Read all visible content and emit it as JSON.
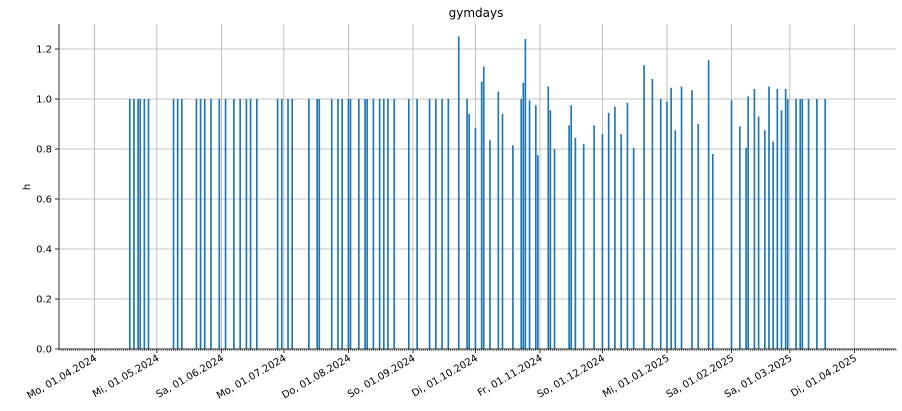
{
  "chart_data": {
    "type": "bar",
    "title": "gymdays",
    "xlabel": "",
    "ylabel": "h",
    "ylim": [
      0,
      1.3
    ],
    "xlim": [
      "2024-03-15",
      "2025-04-21"
    ],
    "grid": true,
    "bar_color": "#1f77b4",
    "y_ticks": [
      0.0,
      0.2,
      0.4,
      0.6,
      0.8,
      1.0,
      1.2
    ],
    "y_tick_labels": [
      "0.0",
      "0.2",
      "0.4",
      "0.6",
      "0.8",
      "1.0",
      "1.2"
    ],
    "x_ticks": [
      "2024-04-01",
      "2024-05-01",
      "2024-06-01",
      "2024-07-01",
      "2024-08-01",
      "2024-09-01",
      "2024-10-01",
      "2024-11-01",
      "2024-12-01",
      "2025-01-01",
      "2025-02-01",
      "2025-03-01",
      "2025-04-01"
    ],
    "x_tick_labels": [
      "Mo, 01.04.2024",
      "Mi, 01.05.2024",
      "Sa, 01.06.2024",
      "Mo, 01.07.2024",
      "Do, 01.08.2024",
      "So, 01.09.2024",
      "Di, 01.10.2024",
      "Fr, 01.11.2024",
      "So, 01.12.2024",
      "Mi, 01.01.2025",
      "Sa, 01.02.2025",
      "Sa, 01.03.2025",
      "Di, 01.04.2025"
    ],
    "x": [
      "2024-04-18",
      "2024-04-20",
      "2024-04-22",
      "2024-04-23",
      "2024-04-25",
      "2024-04-27",
      "2024-05-09",
      "2024-05-11",
      "2024-05-13",
      "2024-05-20",
      "2024-05-22",
      "2024-05-24",
      "2024-05-27",
      "2024-05-31",
      "2024-06-03",
      "2024-06-07",
      "2024-06-10",
      "2024-06-13",
      "2024-06-15",
      "2024-06-18",
      "2024-06-28",
      "2024-06-30",
      "2024-07-03",
      "2024-07-05",
      "2024-07-13",
      "2024-07-17",
      "2024-07-18",
      "2024-07-24",
      "2024-07-27",
      "2024-07-29",
      "2024-08-01",
      "2024-08-02",
      "2024-08-06",
      "2024-08-09",
      "2024-08-10",
      "2024-08-13",
      "2024-08-16",
      "2024-08-18",
      "2024-08-20",
      "2024-08-23",
      "2024-08-30",
      "2024-09-03",
      "2024-09-09",
      "2024-09-12",
      "2024-09-15",
      "2024-09-18",
      "2024-09-23",
      "2024-09-27",
      "2024-09-28",
      "2024-10-01",
      "2024-10-04",
      "2024-10-05",
      "2024-10-08",
      "2024-10-12",
      "2024-10-14",
      "2024-10-19",
      "2024-10-23",
      "2024-10-24",
      "2024-10-25",
      "2024-10-27",
      "2024-10-30",
      "2024-10-31",
      "2024-11-05",
      "2024-11-06",
      "2024-11-08",
      "2024-11-15",
      "2024-11-16",
      "2024-11-18",
      "2024-11-22",
      "2024-11-27",
      "2024-12-01",
      "2024-12-04",
      "2024-12-07",
      "2024-12-10",
      "2024-12-13",
      "2024-12-16",
      "2024-12-21",
      "2024-12-25",
      "2024-12-29",
      "2025-01-01",
      "2025-01-03",
      "2025-01-05",
      "2025-01-08",
      "2025-01-13",
      "2025-01-16",
      "2025-01-21",
      "2025-01-23",
      "2025-02-01",
      "2025-02-05",
      "2025-02-08",
      "2025-02-09",
      "2025-02-12",
      "2025-02-14",
      "2025-02-17",
      "2025-02-19",
      "2025-02-21",
      "2025-02-23",
      "2025-02-25",
      "2025-02-27",
      "2025-02-28",
      "2025-03-04",
      "2025-03-06",
      "2025-03-07",
      "2025-03-10",
      "2025-03-14",
      "2025-03-18"
    ],
    "values": [
      1.0,
      1.0,
      1.0,
      1.0,
      1.0,
      1.0,
      1.0,
      1.0,
      1.0,
      1.0,
      1.0,
      1.0,
      1.0,
      1.0,
      1.0,
      1.0,
      1.0,
      1.0,
      1.0,
      1.0,
      1.0,
      1.0,
      1.0,
      1.0,
      1.0,
      1.0,
      1.0,
      1.0,
      1.0,
      1.0,
      1.0,
      1.0,
      1.0,
      1.0,
      1.0,
      1.0,
      1.0,
      1.0,
      1.0,
      1.0,
      1.0,
      1.0,
      1.0,
      1.0,
      1.0,
      1.0,
      1.25,
      1.0,
      0.94,
      0.885,
      1.07,
      1.13,
      0.835,
      1.03,
      0.94,
      0.815,
      1.0,
      1.065,
      1.24,
      0.995,
      0.975,
      0.775,
      1.05,
      0.955,
      0.8,
      0.895,
      0.975,
      0.845,
      0.82,
      0.895,
      0.86,
      0.945,
      0.97,
      0.86,
      0.985,
      0.805,
      1.135,
      1.08,
      1.0,
      0.99,
      1.045,
      0.875,
      1.05,
      1.035,
      0.9,
      1.155,
      0.78,
      0.995,
      0.89,
      0.805,
      1.01,
      1.04,
      0.93,
      0.875,
      1.05,
      0.83,
      1.04,
      0.955,
      1.04,
      1.0,
      1.0,
      1.0,
      1.0,
      1.0,
      1.0,
      1.0
    ]
  }
}
